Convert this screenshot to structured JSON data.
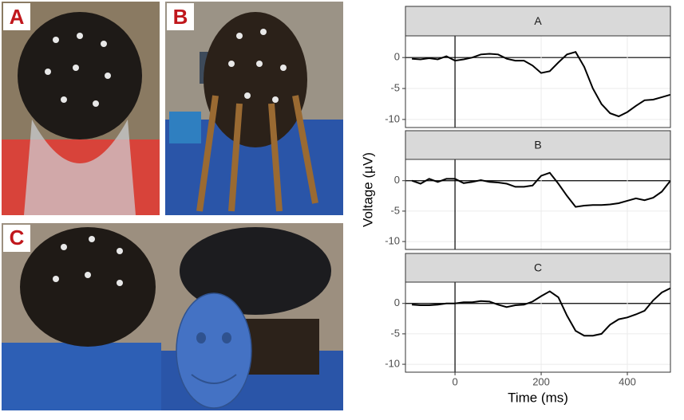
{
  "photo_labels": [
    "A",
    "B",
    "C"
  ],
  "chart_data": {
    "type": "line",
    "xlabel": "Time (ms)",
    "ylabel": "Voltage (µV)",
    "x": [
      -100,
      -80,
      -60,
      -40,
      -20,
      0,
      20,
      40,
      60,
      80,
      100,
      120,
      140,
      160,
      180,
      200,
      220,
      240,
      260,
      280,
      300,
      320,
      340,
      360,
      380,
      400,
      420,
      440,
      460,
      480,
      500
    ],
    "xlim": [
      -115,
      500
    ],
    "ylim": [
      -11.3,
      3.5
    ],
    "xticks": [
      0,
      200,
      400
    ],
    "yticks": [
      0,
      -5,
      -10
    ],
    "grid": true,
    "color": "#000000",
    "facets": [
      {
        "title": "A",
        "values": [
          -0.2,
          -0.3,
          -0.1,
          -0.3,
          0.2,
          -0.5,
          -0.3,
          0,
          0.5,
          0.6,
          0.5,
          -0.2,
          -0.5,
          -0.5,
          -1.3,
          -2.5,
          -2.2,
          -0.8,
          0.5,
          0.9,
          -1.5,
          -5,
          -7.5,
          -9,
          -9.5,
          -8.8,
          -7.8,
          -6.9,
          -6.8,
          -6.4,
          -6.0
        ]
      },
      {
        "title": "B",
        "values": [
          0,
          -0.5,
          0.3,
          -0.2,
          0.3,
          0.3,
          -0.4,
          -0.2,
          0.1,
          -0.2,
          -0.3,
          -0.5,
          -1,
          -1,
          -0.8,
          0.8,
          1.3,
          -0.5,
          -2.5,
          -4.3,
          -4.1,
          -4,
          -4,
          -3.9,
          -3.7,
          -3.3,
          -2.9,
          -3.2,
          -2.8,
          -1.8,
          0
        ]
      },
      {
        "title": "C",
        "values": [
          -0.2,
          -0.3,
          -0.3,
          -0.2,
          0,
          0,
          0.2,
          0.2,
          0.4,
          0.3,
          -0.2,
          -0.6,
          -0.3,
          -0.2,
          0.3,
          1.2,
          2,
          1,
          -2,
          -4.5,
          -5.3,
          -5.3,
          -5,
          -3.5,
          -2.6,
          -2.3,
          -1.8,
          -1.2,
          0.5,
          1.8,
          2.5
        ]
      }
    ]
  }
}
